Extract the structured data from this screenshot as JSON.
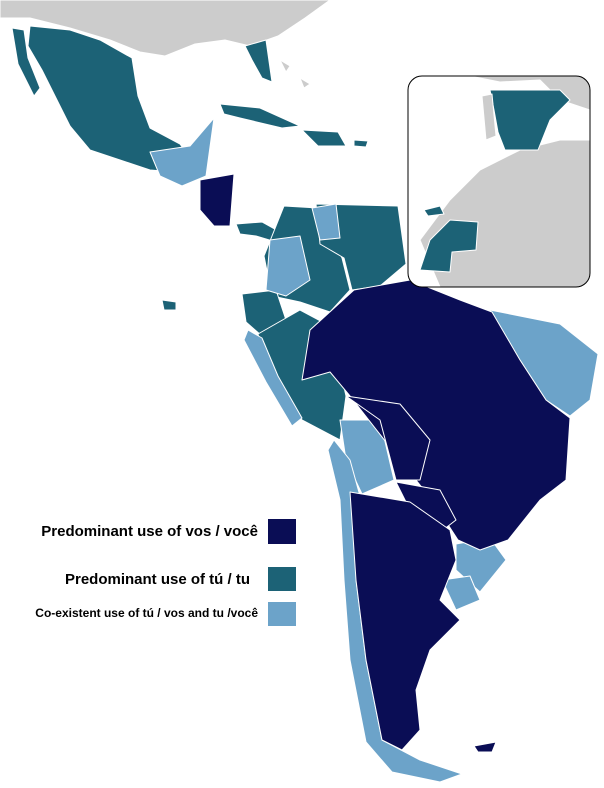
{
  "legend": {
    "items": [
      {
        "label": "Predominant use of vos / você",
        "color": "#0a0d55"
      },
      {
        "label": "Predominant use of tú / tu",
        "color": "#1c6276"
      },
      {
        "label": "Co-existent use of tú / vos and tu /você",
        "color": "#6ca3c9"
      }
    ]
  },
  "land_color": "#cccccc"
}
